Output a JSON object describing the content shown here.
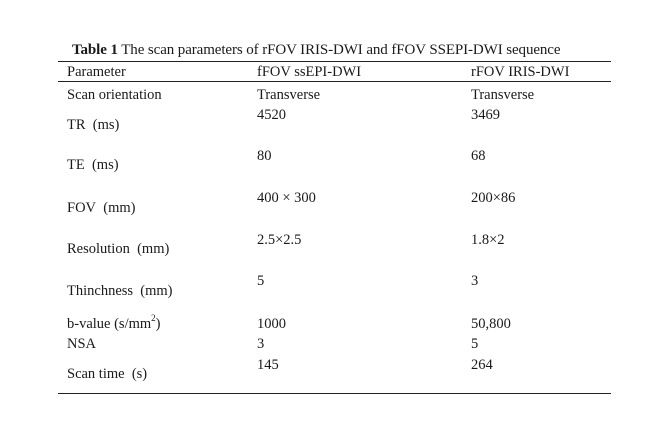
{
  "caption": {
    "label": "Table 1",
    "text": " The scan parameters of rFOV IRIS-DWI and fFOV SSEPI-DWI sequence"
  },
  "table": {
    "headers": [
      "Parameter",
      "fFOV ssEPI-DWI",
      "rFOV IRIS-DWI"
    ],
    "rows": [
      {
        "param": "Scan orientation",
        "ffov": "Transverse",
        "rfov": "Transverse"
      },
      {
        "param": "TR  (ms)",
        "ffov": "4520",
        "rfov": "3469"
      },
      {
        "param": "TE  (ms)",
        "ffov": "80",
        "rfov": "68"
      },
      {
        "param": "FOV  (mm)",
        "ffov": "400 × 300",
        "rfov": "200×86"
      },
      {
        "param": "Resolution  (mm)",
        "ffov": "2.5×2.5",
        "rfov": "1.8×2"
      },
      {
        "param": "Thinchness  (mm)",
        "ffov": "5",
        "rfov": "3"
      },
      {
        "param_pre": "b-value (s/mm",
        "param_sup": "2",
        "param_post": ")",
        "ffov": "1000",
        "rfov": "50,800"
      },
      {
        "param": "NSA",
        "ffov": "3",
        "rfov": "5"
      },
      {
        "param": "Scan time  (s)",
        "ffov": "145",
        "rfov": "264"
      }
    ]
  }
}
